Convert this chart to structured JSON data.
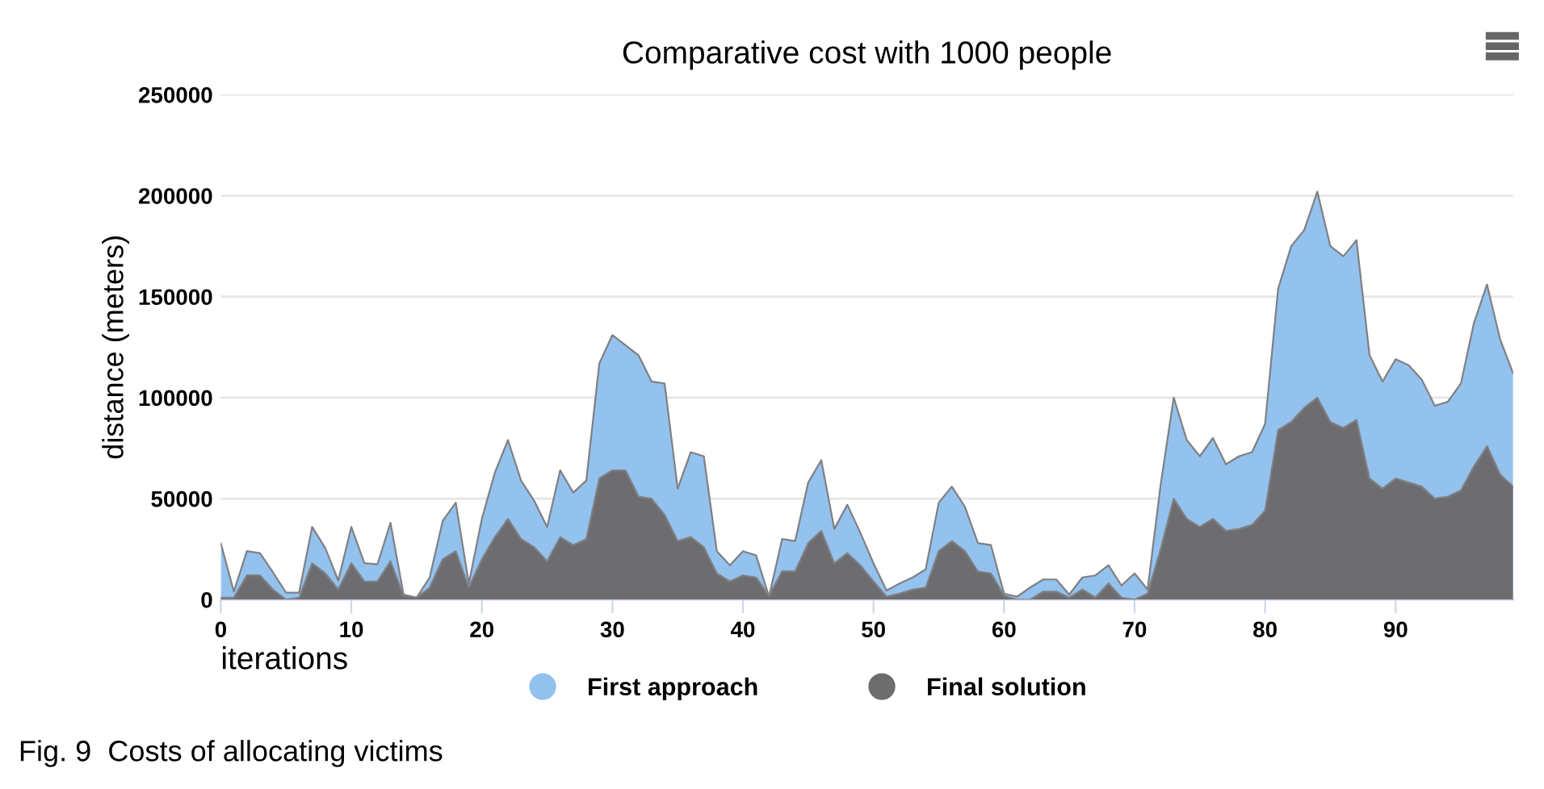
{
  "chart_data": {
    "type": "area",
    "title": "Comparative cost with 1000 people",
    "xlabel": "iterations",
    "ylabel": "distance (meters)",
    "x": [
      0,
      1,
      2,
      3,
      4,
      5,
      6,
      7,
      8,
      9,
      10,
      11,
      12,
      13,
      14,
      15,
      16,
      17,
      18,
      19,
      20,
      21,
      22,
      23,
      24,
      25,
      26,
      27,
      28,
      29,
      30,
      31,
      32,
      33,
      34,
      35,
      36,
      37,
      38,
      39,
      40,
      41,
      42,
      43,
      44,
      45,
      46,
      47,
      48,
      49,
      50,
      51,
      52,
      53,
      54,
      55,
      56,
      57,
      58,
      59,
      60,
      61,
      62,
      63,
      64,
      65,
      66,
      67,
      68,
      69,
      70,
      71,
      72,
      73,
      74,
      75,
      76,
      77,
      78,
      79,
      80,
      81,
      82,
      83,
      84,
      85,
      86,
      87,
      88,
      89,
      90,
      91,
      92,
      93,
      94,
      95,
      96,
      97,
      98,
      99
    ],
    "series": [
      {
        "name": "First approach",
        "color": "#93c2ee",
        "values": [
          28000,
          4000,
          24000,
          23000,
          13500,
          3500,
          3500,
          36000,
          25500,
          9500,
          36000,
          18000,
          17500,
          38000,
          2500,
          1000,
          11000,
          39000,
          48000,
          8000,
          40000,
          63000,
          79000,
          59000,
          49000,
          36000,
          64000,
          53000,
          59000,
          117000,
          131000,
          126000,
          121000,
          108000,
          107000,
          55000,
          73000,
          71000,
          24000,
          17000,
          24000,
          22000,
          1500,
          30000,
          29000,
          58000,
          69000,
          35000,
          47000,
          33000,
          18000,
          4500,
          8000,
          11000,
          15000,
          48000,
          56000,
          46000,
          28000,
          27000,
          3000,
          1500,
          6000,
          10000,
          10000,
          2500,
          11000,
          12000,
          17000,
          7000,
          13000,
          5000,
          57000,
          100000,
          79000,
          71000,
          80000,
          67000,
          71000,
          73000,
          87000,
          154000,
          175000,
          183000,
          202000,
          175000,
          170000,
          178000,
          121000,
          108000,
          119000,
          116000,
          109000,
          96000,
          98000,
          107000,
          137000,
          156000,
          129000,
          112000
        ]
      },
      {
        "name": "Final solution",
        "color": "#6d6d70",
        "values": [
          1000,
          1000,
          12000,
          12000,
          5000,
          0,
          1000,
          18000,
          13000,
          5000,
          18000,
          9000,
          9000,
          19000,
          2000,
          1000,
          6000,
          20000,
          24000,
          6000,
          20000,
          31000,
          40000,
          30000,
          26000,
          19000,
          31000,
          27000,
          30000,
          60000,
          64000,
          64000,
          51000,
          50000,
          42000,
          29000,
          31000,
          26000,
          13000,
          9000,
          12000,
          11000,
          2000,
          14000,
          14000,
          28000,
          34000,
          18000,
          23000,
          17000,
          9000,
          1500,
          3000,
          5000,
          6000,
          24000,
          29000,
          24000,
          14000,
          13000,
          2000,
          0,
          0,
          4000,
          4000,
          1000,
          5000,
          1000,
          8000,
          1000,
          0,
          3000,
          25000,
          50000,
          40000,
          36000,
          40000,
          34000,
          35000,
          37000,
          44000,
          84000,
          88000,
          95000,
          100000,
          88000,
          85000,
          89000,
          60000,
          55000,
          60000,
          58000,
          56000,
          50000,
          51000,
          54000,
          66000,
          76000,
          62000,
          56000
        ]
      }
    ],
    "xlim": [
      0,
      99
    ],
    "xticks": [
      0,
      10,
      20,
      30,
      40,
      50,
      60,
      70,
      80,
      90
    ],
    "ylim": [
      0,
      250000
    ],
    "yticks": [
      0,
      50000,
      100000,
      150000,
      200000,
      250000
    ],
    "grid": "y",
    "legend": "bottom",
    "marker": "none",
    "line_style": "solid",
    "annotations": [
      "Fig. 9  Costs of allocating victims"
    ]
  }
}
